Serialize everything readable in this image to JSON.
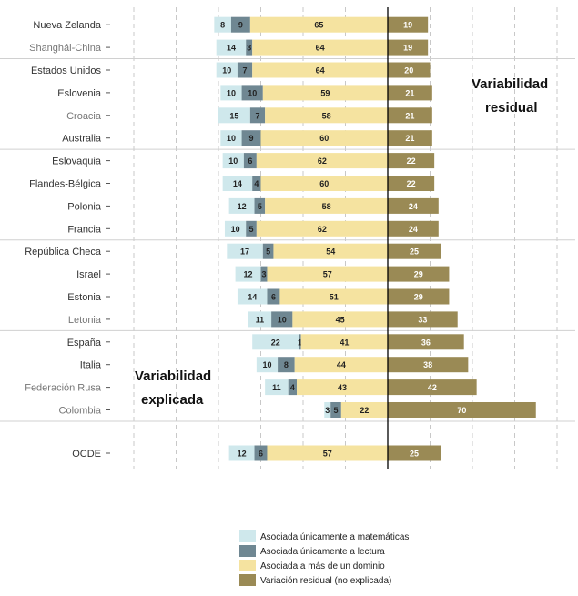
{
  "chart_data": {
    "type": "bar",
    "orientation": "horizontal",
    "stacked": true,
    "grid": true,
    "legend_position": "bottom",
    "categories": [
      "Nueva Zelanda",
      "Shanghái-China",
      "Estados Unidos",
      "Eslovenia",
      "Croacia",
      "Australia",
      "Eslovaquia",
      "Flandes-Bélgica",
      "Polonia",
      "Francia",
      "República Checa",
      "Israel",
      "Estonia",
      "Letonia",
      "España",
      "Italia",
      "Federación Rusa",
      "Colombia",
      "OCDE"
    ],
    "category_colors": [
      "#333333",
      "#777777",
      "#333333",
      "#333333",
      "#777777",
      "#333333",
      "#333333",
      "#333333",
      "#333333",
      "#333333",
      "#333333",
      "#333333",
      "#333333",
      "#777777",
      "#333333",
      "#333333",
      "#777777",
      "#777777",
      "#333333"
    ],
    "series": [
      {
        "name": "Asociada únicamente a matemáticas",
        "color": "#cfe8ec",
        "values": [
          8,
          14,
          10,
          10,
          15,
          10,
          10,
          14,
          12,
          10,
          17,
          12,
          14,
          11,
          22,
          10,
          11,
          3,
          12
        ]
      },
      {
        "name": "Asociada únicamente a lectura",
        "color": "#6f8792",
        "values": [
          9,
          3,
          7,
          10,
          7,
          9,
          6,
          4,
          5,
          5,
          5,
          3,
          6,
          10,
          1,
          8,
          4,
          5,
          6
        ]
      },
      {
        "name": "Asociada a más de un dominio",
        "color": "#f5e3a0",
        "values": [
          65,
          64,
          64,
          59,
          58,
          60,
          62,
          60,
          58,
          62,
          54,
          57,
          51,
          45,
          41,
          44,
          43,
          22,
          57
        ]
      },
      {
        "name": "Variación residual (no explicada)",
        "color": "#9a8a55",
        "values": [
          19,
          19,
          20,
          21,
          21,
          21,
          22,
          22,
          24,
          24,
          25,
          29,
          29,
          33,
          36,
          38,
          42,
          70,
          25
        ]
      }
    ],
    "annotations": {
      "residual": [
        "Variabilidad",
        "residual"
      ],
      "explained": [
        "Variabilidad",
        "explicada"
      ]
    }
  },
  "colors": {
    "grid": "#c8c8c8",
    "zero_line": "#000000",
    "separator": "#d0d0d0"
  }
}
